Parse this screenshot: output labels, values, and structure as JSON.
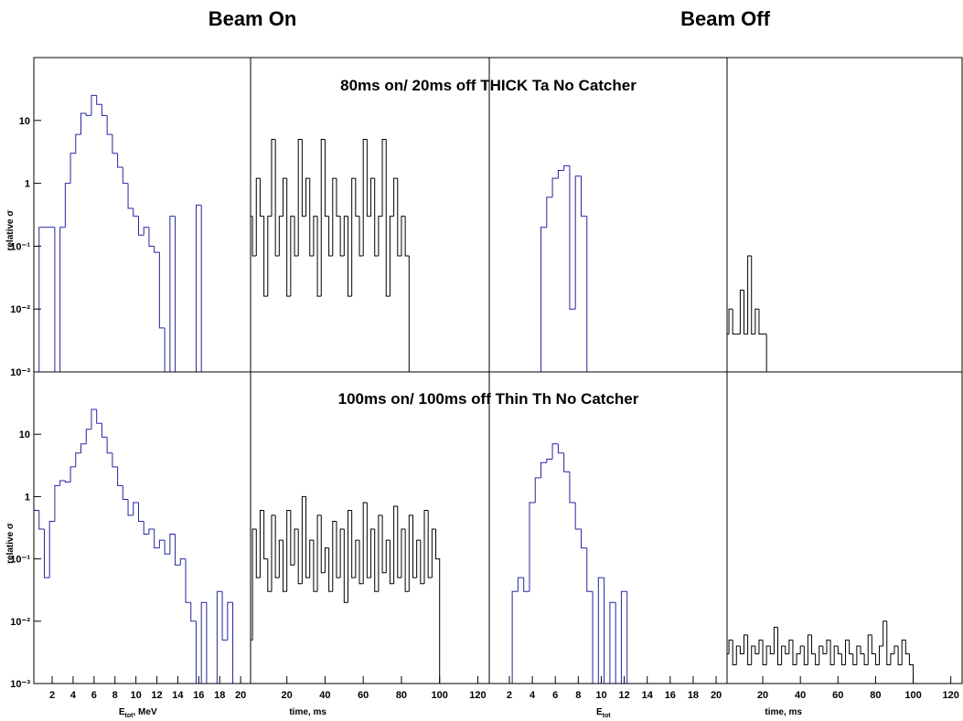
{
  "headers": [
    "Beam On",
    "Beam Off"
  ],
  "row_titles": [
    "80ms on/ 20ms off THICK Ta No Catcher",
    "100ms on/ 100ms off Thin Th No Catcher"
  ],
  "chart_data": [
    {
      "type": "histogram",
      "log_y": true,
      "color": "#2525a5",
      "xlim": [
        0.25,
        20.95
      ],
      "ylim": [
        0.001,
        100
      ],
      "ylabel": "relative σ",
      "yticks": [
        {
          "value": 0.001,
          "label": "10⁻³"
        },
        {
          "value": 0.01,
          "label": "10⁻²"
        },
        {
          "value": 0.1,
          "label": "10⁻¹"
        },
        1,
        10
      ],
      "bins": [
        0.25,
        0.75,
        1.25,
        1.75,
        2.25,
        2.75,
        3.25,
        3.75,
        4.25,
        4.75,
        5.25,
        5.75,
        6.25,
        6.75,
        7.25,
        7.75,
        8.25,
        8.75,
        9.25,
        9.75,
        10.25,
        10.75,
        11.25,
        11.75,
        12.25,
        12.75,
        13.25,
        13.75,
        14.25,
        14.75,
        15.25,
        15.75,
        16.25,
        16.75,
        17.25,
        17.75,
        18.25,
        18.75,
        19.25,
        19.75,
        20.25,
        20.75
      ],
      "values": [
        0,
        0.2,
        0.2,
        0.2,
        0,
        0.2,
        1,
        3,
        6,
        13,
        12,
        25,
        18,
        12,
        6,
        3,
        1.8,
        1,
        0.4,
        0.3,
        0.15,
        0.2,
        0.1,
        0.08,
        0.005,
        0,
        0.3,
        0,
        0,
        0,
        0,
        0.45,
        0,
        0,
        0,
        0,
        0,
        0,
        0,
        0,
        0
      ]
    },
    {
      "type": "histogram",
      "log_y": true,
      "color": "#000000",
      "xlim": [
        1,
        126
      ],
      "ylim": [
        0.001,
        100
      ],
      "bins": [
        0,
        2,
        4,
        6,
        8,
        10,
        12,
        14,
        16,
        18,
        20,
        22,
        24,
        26,
        28,
        30,
        32,
        34,
        36,
        38,
        40,
        42,
        44,
        46,
        48,
        50,
        52,
        54,
        56,
        58,
        60,
        62,
        64,
        66,
        68,
        70,
        72,
        74,
        76,
        78,
        80,
        82,
        84,
        86,
        88,
        90,
        92,
        94,
        96,
        98,
        100
      ],
      "values": [
        0.3,
        0.07,
        1.2,
        0.3,
        0.016,
        0.3,
        5,
        0.07,
        0.3,
        1.2,
        0.016,
        0.3,
        0.07,
        5,
        0.3,
        1.2,
        0.07,
        0.3,
        0.016,
        5,
        0.3,
        0.07,
        1.2,
        0.3,
        0.07,
        0.3,
        0.016,
        1.2,
        0.3,
        0.07,
        5,
        0.3,
        1.2,
        0.07,
        0.3,
        5,
        0.016,
        0.3,
        1.2,
        0.07,
        0.3,
        0.07,
        0,
        0,
        0,
        0,
        0,
        0,
        0,
        0
      ]
    },
    {
      "type": "histogram",
      "log_y": true,
      "color": "#2525a5",
      "xlim": [
        0.25,
        20.95
      ],
      "ylim": [
        0.001,
        100
      ],
      "bins": [
        0.25,
        0.75,
        1.25,
        1.75,
        2.25,
        2.75,
        3.25,
        3.75,
        4.25,
        4.75,
        5.25,
        5.75,
        6.25,
        6.75,
        7.25,
        7.75,
        8.25,
        8.75,
        9.25,
        9.75,
        10.25,
        10.75,
        11.25,
        11.75,
        12.25,
        12.75,
        13.25,
        13.75,
        14.25,
        14.75,
        15.25,
        15.75,
        16.25,
        16.75,
        17.25,
        17.75,
        18.25,
        18.75,
        19.25,
        19.75,
        20.25,
        20.75
      ],
      "values": [
        0,
        0,
        0,
        0,
        0,
        0,
        0,
        0,
        0,
        0.2,
        0.6,
        1.2,
        1.6,
        1.9,
        0.01,
        1.3,
        0.3,
        0,
        0,
        0,
        0,
        0,
        0,
        0,
        0,
        0,
        0,
        0,
        0,
        0,
        0,
        0,
        0,
        0,
        0,
        0,
        0,
        0,
        0,
        0,
        0
      ]
    },
    {
      "type": "histogram",
      "log_y": true,
      "color": "#000000",
      "xlim": [
        1,
        126
      ],
      "ylim": [
        0.001,
        100
      ],
      "bins": [
        0,
        2,
        4,
        6,
        8,
        10,
        12,
        14,
        16,
        18,
        20,
        22,
        24,
        26,
        28,
        30,
        32,
        34,
        36,
        38,
        40,
        42,
        44,
        46,
        48,
        50,
        52,
        54,
        56,
        58,
        60,
        62,
        64,
        66,
        68,
        70,
        72,
        74,
        76,
        78,
        80,
        82,
        84,
        86,
        88,
        90,
        92,
        94,
        96,
        98,
        100
      ],
      "values": [
        0.004,
        0.01,
        0.004,
        0.004,
        0.02,
        0.004,
        0.07,
        0.004,
        0.01,
        0.004,
        0.004,
        0,
        0,
        0,
        0,
        0,
        0,
        0,
        0,
        0,
        0,
        0,
        0,
        0,
        0,
        0,
        0,
        0,
        0,
        0,
        0,
        0,
        0,
        0,
        0,
        0,
        0,
        0,
        0,
        0,
        0,
        0,
        0,
        0,
        0,
        0,
        0,
        0,
        0,
        0
      ]
    },
    {
      "type": "histogram",
      "log_y": true,
      "color": "#2525a5",
      "xlim": [
        0.25,
        20.95
      ],
      "ylim": [
        0.001,
        100
      ],
      "ylabel": "relative σ",
      "xlabel": {
        "main": "E",
        "sub": "tot",
        "tail": ", MeV"
      },
      "yticks": [
        {
          "value": 0.001,
          "label": "10⁻³"
        },
        {
          "value": 0.01,
          "label": "10⁻²"
        },
        {
          "value": 0.1,
          "label": "10⁻¹"
        },
        1,
        10
      ],
      "xticks": [
        2,
        4,
        6,
        8,
        10,
        12,
        14,
        16,
        18,
        20
      ],
      "bins": [
        0.25,
        0.75,
        1.25,
        1.75,
        2.25,
        2.75,
        3.25,
        3.75,
        4.25,
        4.75,
        5.25,
        5.75,
        6.25,
        6.75,
        7.25,
        7.75,
        8.25,
        8.75,
        9.25,
        9.75,
        10.25,
        10.75,
        11.25,
        11.75,
        12.25,
        12.75,
        13.25,
        13.75,
        14.25,
        14.75,
        15.25,
        15.75,
        16.25,
        16.75,
        17.25,
        17.75,
        18.25,
        18.75,
        19.25,
        19.75,
        20.25,
        20.75
      ],
      "values": [
        0.6,
        0.3,
        0.05,
        0.4,
        1.5,
        1.8,
        1.7,
        3,
        5,
        7,
        12,
        25,
        15,
        9,
        5,
        3,
        1.5,
        0.9,
        0.5,
        0.8,
        0.4,
        0.25,
        0.3,
        0.15,
        0.2,
        0.12,
        0.25,
        0.08,
        0.1,
        0.02,
        0.01,
        0,
        0.02,
        0,
        0,
        0.03,
        0.005,
        0.02,
        0,
        0,
        0
      ]
    },
    {
      "type": "histogram",
      "log_y": true,
      "color": "#000000",
      "xlim": [
        1,
        126
      ],
      "ylim": [
        0.001,
        100
      ],
      "xlabel": "time, ms",
      "xticks": [
        20,
        40,
        60,
        80,
        100,
        120
      ],
      "bins": [
        0,
        2,
        4,
        6,
        8,
        10,
        12,
        14,
        16,
        18,
        20,
        22,
        24,
        26,
        28,
        30,
        32,
        34,
        36,
        38,
        40,
        42,
        44,
        46,
        48,
        50,
        52,
        54,
        56,
        58,
        60,
        62,
        64,
        66,
        68,
        70,
        72,
        74,
        76,
        78,
        80,
        82,
        84,
        86,
        88,
        90,
        92,
        94,
        96,
        98,
        100
      ],
      "values": [
        0.005,
        0.3,
        0.05,
        0.6,
        0.1,
        0.03,
        0.5,
        0.05,
        0.2,
        0.03,
        0.6,
        0.08,
        0.3,
        0.04,
        1,
        0.05,
        0.2,
        0.03,
        0.5,
        0.06,
        0.15,
        0.03,
        0.4,
        0.05,
        0.3,
        0.02,
        0.6,
        0.05,
        0.2,
        0.04,
        0.8,
        0.05,
        0.3,
        0.03,
        0.5,
        0.06,
        0.2,
        0.04,
        0.7,
        0.05,
        0.3,
        0.03,
        0.5,
        0.05,
        0.2,
        0.04,
        0.6,
        0.05,
        0.3,
        0.1
      ]
    },
    {
      "type": "histogram",
      "log_y": true,
      "color": "#2525a5",
      "xlim": [
        0.25,
        20.95
      ],
      "ylim": [
        0.001,
        100
      ],
      "xlabel": {
        "main": "E",
        "sub": "tot"
      },
      "xticks": [
        2,
        4,
        6,
        8,
        10,
        12,
        14,
        16,
        18,
        20
      ],
      "bins": [
        0.25,
        0.75,
        1.25,
        1.75,
        2.25,
        2.75,
        3.25,
        3.75,
        4.25,
        4.75,
        5.25,
        5.75,
        6.25,
        6.75,
        7.25,
        7.75,
        8.25,
        8.75,
        9.25,
        9.75,
        10.25,
        10.75,
        11.25,
        11.75,
        12.25,
        12.75,
        13.25,
        13.75,
        14.25,
        14.75,
        15.25,
        15.75,
        16.25,
        16.75,
        17.25,
        17.75,
        18.25,
        18.75,
        19.25,
        19.75,
        20.25,
        20.75
      ],
      "values": [
        0,
        0,
        0,
        0,
        0.03,
        0.05,
        0.03,
        0.8,
        2,
        3.5,
        4,
        7,
        5,
        2.5,
        0.8,
        0.3,
        0.15,
        0.03,
        0,
        0.05,
        0,
        0.02,
        0,
        0.03,
        0,
        0,
        0,
        0,
        0,
        0,
        0,
        0,
        0,
        0,
        0,
        0,
        0,
        0,
        0,
        0,
        0
      ]
    },
    {
      "type": "histogram",
      "log_y": true,
      "color": "#000000",
      "xlim": [
        1,
        126
      ],
      "ylim": [
        0.001,
        100
      ],
      "xlabel": "time, ms",
      "xticks": [
        20,
        40,
        60,
        80,
        100,
        120
      ],
      "bins": [
        0,
        2,
        4,
        6,
        8,
        10,
        12,
        14,
        16,
        18,
        20,
        22,
        24,
        26,
        28,
        30,
        32,
        34,
        36,
        38,
        40,
        42,
        44,
        46,
        48,
        50,
        52,
        54,
        56,
        58,
        60,
        62,
        64,
        66,
        68,
        70,
        72,
        74,
        76,
        78,
        80,
        82,
        84,
        86,
        88,
        90,
        92,
        94,
        96,
        98,
        100
      ],
      "values": [
        0.003,
        0.005,
        0.002,
        0.004,
        0.003,
        0.006,
        0.002,
        0.004,
        0.003,
        0.005,
        0.002,
        0.004,
        0.003,
        0.008,
        0.002,
        0.004,
        0.003,
        0.005,
        0.002,
        0.003,
        0.004,
        0.002,
        0.006,
        0.003,
        0.002,
        0.004,
        0.003,
        0.005,
        0.002,
        0.004,
        0.003,
        0.002,
        0.005,
        0.003,
        0.002,
        0.004,
        0.003,
        0.002,
        0.006,
        0.003,
        0.002,
        0.004,
        0.01,
        0.002,
        0.003,
        0.004,
        0.002,
        0.005,
        0.003,
        0.002
      ]
    }
  ]
}
